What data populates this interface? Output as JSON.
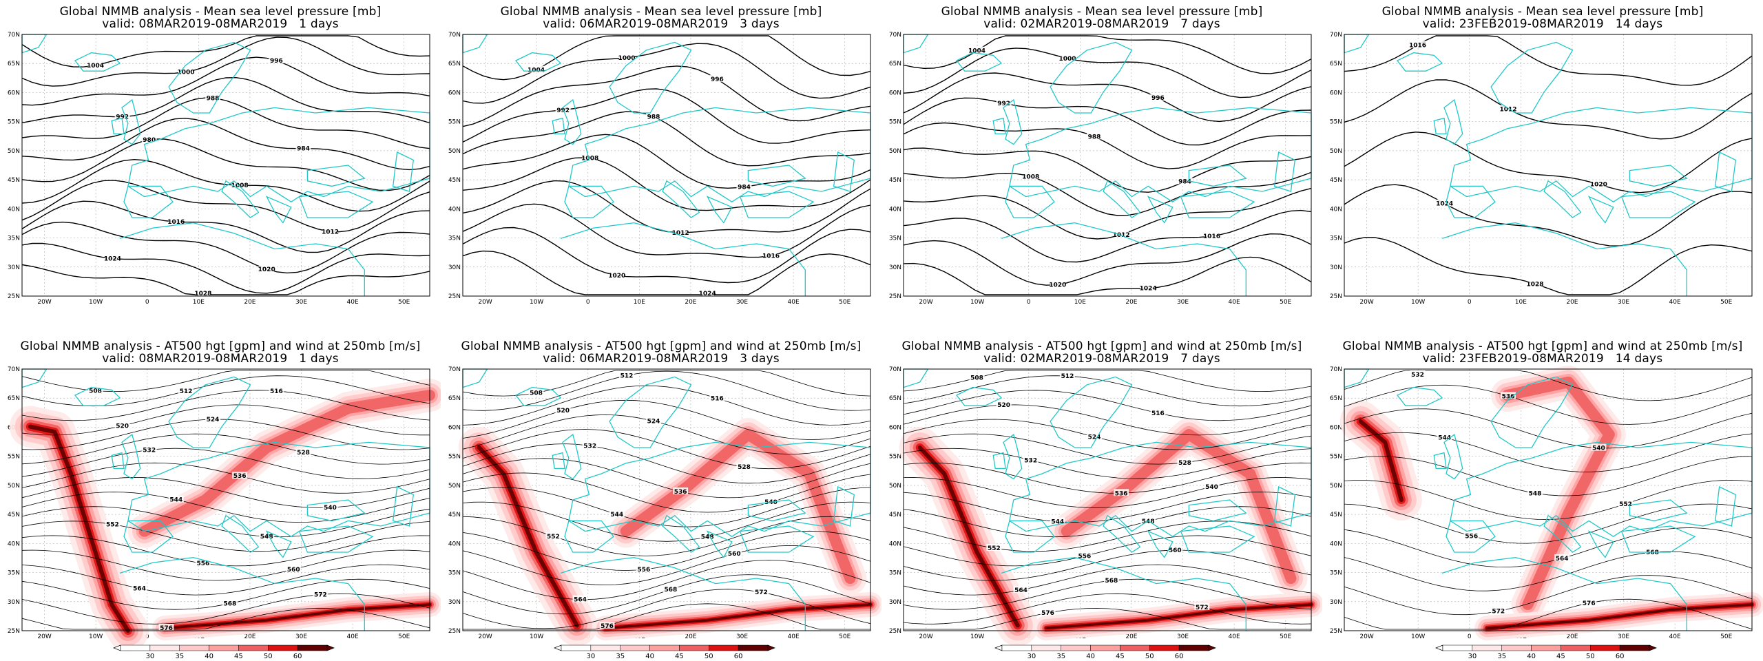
{
  "colors": {
    "coast": "#20c8c8",
    "contour": "#000000",
    "wind_ramp": [
      "#ffe8e8",
      "#ffc8c8",
      "#ffa0a0",
      "#f06060",
      "#e01010",
      "#600000"
    ]
  },
  "lat_ticks": [
    "70N",
    "65N",
    "60N",
    "55N",
    "50N",
    "45N",
    "40N",
    "35N",
    "30N",
    "25N"
  ],
  "lon_ticks": [
    "20W",
    "10W",
    "0",
    "10E",
    "20E",
    "30E",
    "40E",
    "50E"
  ],
  "colorbar_labels": [
    "30",
    "35",
    "40",
    "45",
    "50",
    "60"
  ],
  "panels_top": [
    {
      "line1": "Global NMMB analysis - Mean sea level pressure [mb]",
      "line2": "valid: 08MAR2019-08MAR2019   1 days",
      "labels": [
        "1004",
        "1000",
        "996",
        "992",
        "988",
        "984",
        "980",
        "1008",
        "1012",
        "1016",
        "1020",
        "1024",
        "1028"
      ]
    },
    {
      "line1": "Global NMMB analysis - Mean sea level pressure [mb]",
      "line2": "valid: 06MAR2019-08MAR2019   3 days",
      "labels": [
        "1004",
        "1000",
        "996",
        "992",
        "988",
        "984",
        "1008",
        "1012",
        "1016",
        "1020",
        "1024"
      ]
    },
    {
      "line1": "Global NMMB analysis - Mean sea level pressure [mb]",
      "line2": "valid: 02MAR2019-08MAR2019   7 days",
      "labels": [
        "1004",
        "1000",
        "996",
        "992",
        "988",
        "984",
        "1008",
        "1012",
        "1016",
        "1020",
        "1024"
      ]
    },
    {
      "line1": "Global NMMB analysis - Mean sea level pressure [mb]",
      "line2": "valid: 23FEB2019-08MAR2019   14 days",
      "labels": [
        "1016",
        "1012",
        "1020",
        "1024",
        "1028"
      ]
    }
  ],
  "panels_bottom": [
    {
      "line1": "Global NMMB analysis - AT500 hgt [gpm] and wind at 250mb [m/s]",
      "line2": "valid: 08MAR2019-08MAR2019   1 days",
      "labels": [
        "508",
        "512",
        "516",
        "520",
        "524",
        "528",
        "532",
        "536",
        "540",
        "544",
        "548",
        "552",
        "556",
        "560",
        "564",
        "568",
        "572",
        "576"
      ]
    },
    {
      "line1": "Global NMMB analysis - AT500 hgt [gpm] and wind at 250mb [m/s]",
      "line2": "valid: 06MAR2019-08MAR2019   3 days",
      "labels": [
        "508",
        "512",
        "516",
        "520",
        "524",
        "528",
        "532",
        "536",
        "540",
        "544",
        "548",
        "552",
        "556",
        "560",
        "564",
        "568",
        "572",
        "576"
      ]
    },
    {
      "line1": "Global NMMB analysis - AT500 hgt [gpm] and wind at 250mb [m/s]",
      "line2": "valid: 02MAR2019-08MAR2019   7 days",
      "labels": [
        "508",
        "512",
        "516",
        "520",
        "524",
        "528",
        "532",
        "536",
        "540",
        "544",
        "548",
        "552",
        "556",
        "560",
        "564",
        "568",
        "572",
        "576"
      ]
    },
    {
      "line1": "Global NMMB analysis - AT500 hgt [gpm] and wind at 250mb [m/s]",
      "line2": "valid: 23FEB2019-08MAR2019   14 days",
      "labels": [
        "532",
        "536",
        "540",
        "544",
        "548",
        "552",
        "556",
        "564",
        "568",
        "572",
        "576"
      ]
    }
  ]
}
